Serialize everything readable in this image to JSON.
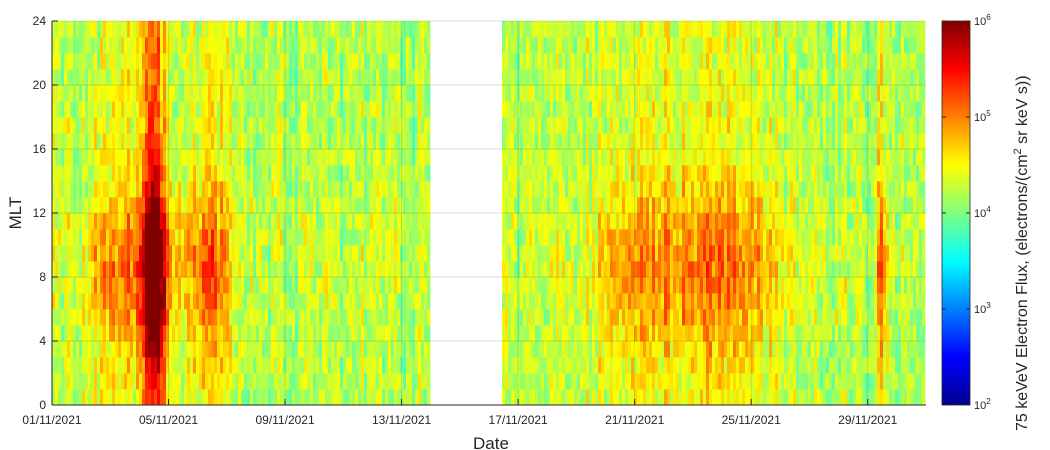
{
  "chart_data": {
    "type": "heatmap",
    "title": "",
    "xlabel": "Date",
    "ylabel": "MLT",
    "x_tick_labels": [
      "01/11/2021",
      "05/11/2021",
      "09/11/2021",
      "13/11/2021",
      "17/11/2021",
      "21/11/2021",
      "25/11/2021",
      "29/11/2021"
    ],
    "x_range": [
      "2021-11-01",
      "2021-12-01"
    ],
    "y_ticks": [
      0,
      4,
      8,
      12,
      16,
      20,
      24
    ],
    "y_tick_labels": [
      "0",
      "4",
      "8",
      "12",
      "16",
      "20",
      "24"
    ],
    "y_range": [
      0,
      24
    ],
    "y_bin_size_hours": 1,
    "grid": true,
    "colormap": "jet",
    "colorbar": {
      "label": "75 keVeV Electron Flux, (electrons/(cm",
      "label_sup": "2",
      "label_end": " sr keV s))",
      "scale": "log",
      "range": [
        100,
        1000000
      ],
      "tick_bases": [
        "10",
        "10",
        "10",
        "10",
        "10"
      ],
      "tick_exponents": [
        "2",
        "3",
        "4",
        "5",
        "6"
      ]
    },
    "data_gap": {
      "start": "2021-11-14T00:00",
      "end": "2021-11-16T12:00"
    },
    "flux_profile": {
      "baseline_log10_flux": 4.2,
      "events": [
        {
          "peak": "2021-11-04T12:00",
          "width_days": 0.35,
          "log10_flux_boost": 1.3
        },
        {
          "peak": "2021-11-04T00:00",
          "width_days": 1.8,
          "log10_flux_boost": 0.45
        },
        {
          "peak": "2021-11-06T12:00",
          "width_days": 0.6,
          "log10_flux_boost": 0.45
        },
        {
          "peak": "2021-11-21T00:00",
          "width_days": 1.5,
          "log10_flux_boost": 0.35
        },
        {
          "peak": "2021-11-24T00:00",
          "width_days": 2.0,
          "log10_flux_boost": 0.45
        },
        {
          "peak": "2021-11-29T12:00",
          "width_days": 0.2,
          "log10_flux_boost": 0.4
        }
      ]
    }
  }
}
